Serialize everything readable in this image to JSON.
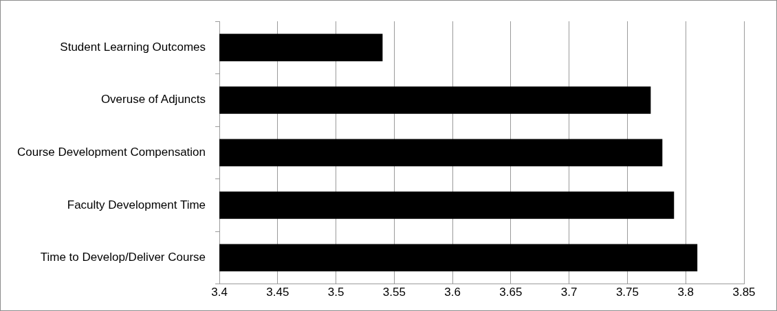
{
  "chart_data": {
    "type": "bar",
    "orientation": "horizontal",
    "categories": [
      "Student Learning Outcomes",
      "Overuse of Adjuncts",
      "Course Development Compensation",
      "Faculty Development Time",
      "Time to Develop/Deliver Course"
    ],
    "values": [
      3.54,
      3.77,
      3.78,
      3.79,
      3.81
    ],
    "color": "#000000",
    "xlim": [
      3.4,
      3.85
    ],
    "xticks": [
      3.4,
      3.45,
      3.5,
      3.55,
      3.6,
      3.65,
      3.7,
      3.75,
      3.8,
      3.85
    ],
    "grid": "x",
    "legend": false
  }
}
